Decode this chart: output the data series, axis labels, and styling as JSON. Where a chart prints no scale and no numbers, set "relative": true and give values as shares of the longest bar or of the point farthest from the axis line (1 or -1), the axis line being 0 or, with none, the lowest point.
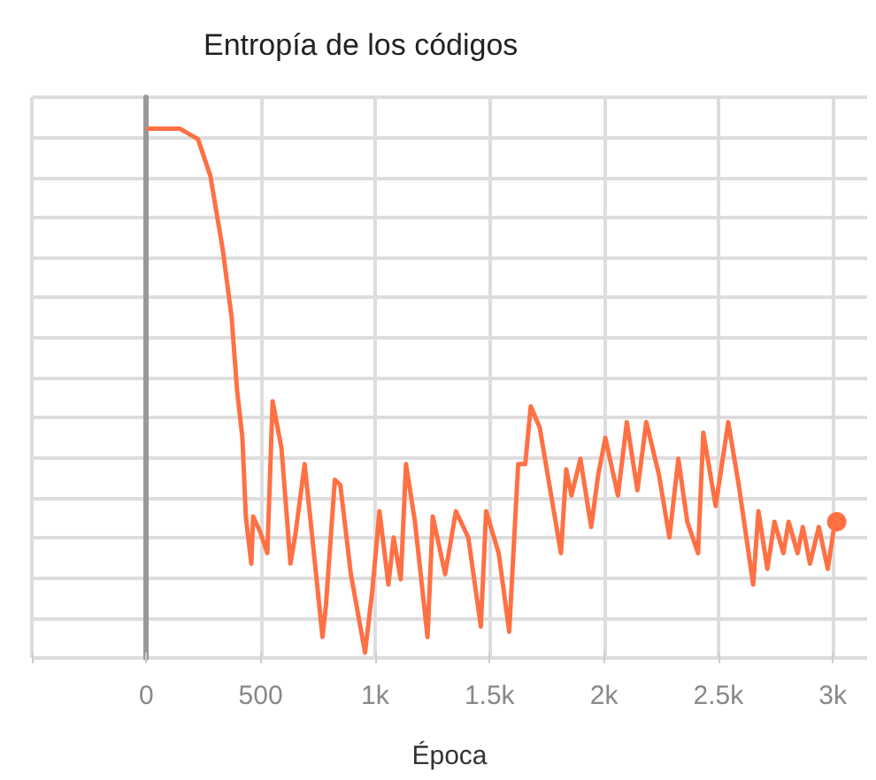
{
  "chart_data": {
    "type": "line",
    "title": "Entropía de los códigos",
    "xlabel": "Época",
    "relative": true,
    "grid": true,
    "marker": "none",
    "line_style": "solid",
    "xlim": [
      -500,
      3150
    ],
    "xticks": [
      {
        "value": -500,
        "label": null
      },
      0,
      500,
      {
        "value": 1000,
        "label": "1k"
      },
      {
        "value": 1500,
        "label": "1.5k"
      },
      {
        "value": 2000,
        "label": "2k"
      },
      {
        "value": 2500,
        "label": "2.5k"
      },
      {
        "value": 3000,
        "label": "3k"
      }
    ],
    "series": [
      {
        "color": "#ff7043",
        "x": [
          8,
          148,
          226,
          280,
          334,
          373,
          397,
          420,
          435,
          459,
          467,
          498,
          529,
          552,
          591,
          630,
          653,
          692,
          723,
          770,
          785,
          824,
          848,
          894,
          956,
          988,
          1019,
          1058,
          1081,
          1112,
          1135,
          1174,
          1229,
          1252,
          1306,
          1353,
          1407,
          1462,
          1485,
          1540,
          1586,
          1625,
          1656,
          1680,
          1719,
          1812,
          1835,
          1858,
          1897,
          1944,
          1975,
          2006,
          2061,
          2100,
          2146,
          2185,
          2240,
          2286,
          2325,
          2364,
          2411,
          2434,
          2488,
          2543,
          2589,
          2652,
          2675,
          2714,
          2745,
          2784,
          2807,
          2846,
          2869,
          2900,
          2939,
          2978,
          3002,
          3017
        ],
        "values": [
          1.0,
          1.0,
          0.98,
          0.91,
          0.77,
          0.64,
          0.5,
          0.41,
          0.26,
          0.17,
          0.26,
          0.23,
          0.19,
          0.48,
          0.39,
          0.17,
          0.23,
          0.36,
          0.23,
          0.03,
          0.09,
          0.33,
          0.32,
          0.15,
          0,
          0.12,
          0.27,
          0.13,
          0.22,
          0.14,
          0.36,
          0.25,
          0.03,
          0.26,
          0.15,
          0.27,
          0.22,
          0.05,
          0.27,
          0.19,
          0.04,
          0.36,
          0.36,
          0.47,
          0.43,
          0.19,
          0.35,
          0.3,
          0.37,
          0.24,
          0.34,
          0.41,
          0.3,
          0.44,
          0.31,
          0.44,
          0.34,
          0.22,
          0.37,
          0.25,
          0.19,
          0.42,
          0.28,
          0.44,
          0.32,
          0.13,
          0.27,
          0.16,
          0.25,
          0.19,
          0.25,
          0.19,
          0.24,
          0.17,
          0.24,
          0.16,
          0.23,
          0.25
        ]
      }
    ]
  }
}
